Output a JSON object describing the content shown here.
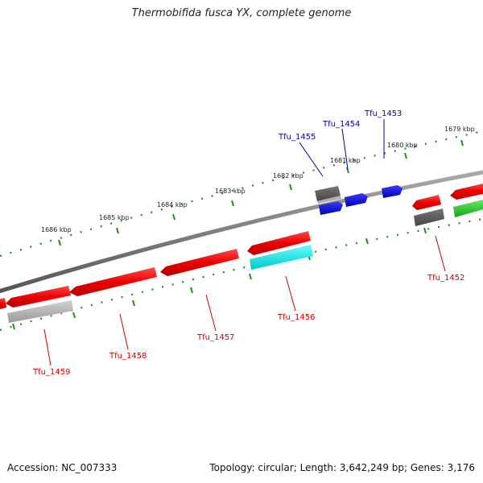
{
  "title": "Thermobifida fusca YX, complete genome",
  "footer": {
    "accession": "Accession: NC_007333",
    "summary": "Topology: circular; Length: 3,642,249 bp; Genes: 3,176"
  },
  "colors": {
    "backbone": "#808080",
    "tick": "#228b22",
    "forward_gene": "#ff0000",
    "reverse_gene": "#ff0000",
    "rna_gene": "#0000ff",
    "pseudo_gene": "#808080",
    "misc_gene": "#00ffff",
    "green_gene": "#33cc33",
    "label_red": "#cc0000",
    "label_blue": "#0000aa"
  },
  "kbp_labels": [
    "1679 kbp",
    "1680 kbp",
    "1681 kbp",
    "1682 kbp",
    "1683 kbp",
    "1684 kbp",
    "1685 kbp",
    "1686 kbp"
  ],
  "gene_labels_top": [
    "Tfu_1455",
    "Tfu_1454",
    "Tfu_1453"
  ],
  "gene_labels_bottom": [
    "Tfu_1452",
    "Tfu_1456",
    "Tfu_1457",
    "Tfu_1458",
    "Tfu_1459"
  ]
}
